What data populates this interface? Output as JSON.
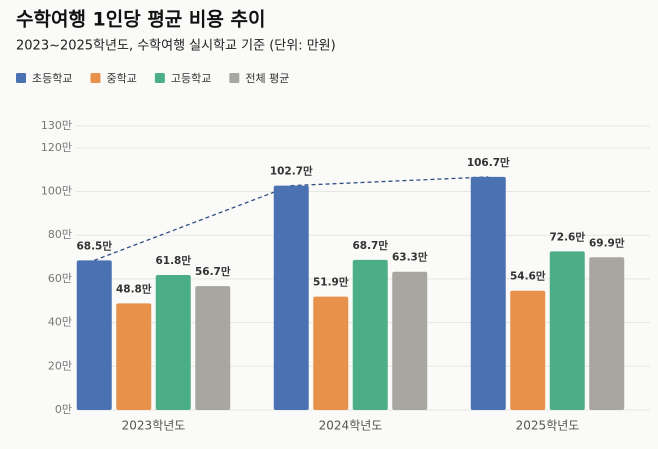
{
  "chart_data": {
    "type": "bar",
    "title": "수학여행 1인당 평균 비용 추이",
    "subtitle": "2023~2025학년도, 수학여행 실시학교 기준 (단위: 만원)",
    "categories": [
      "2023학년도",
      "2024학년도",
      "2025학년도"
    ],
    "series": [
      {
        "name": "초등학교",
        "color": "#4a72b2",
        "label_color": "#2f4f82",
        "values": [
          68.5,
          102.7,
          106.7
        ],
        "value_labels": [
          "68.5만",
          "102.7만",
          "106.7만"
        ]
      },
      {
        "name": "중학교",
        "color": "#e8914b",
        "label_color": "#a85f22",
        "values": [
          48.8,
          51.9,
          54.6
        ],
        "value_labels": [
          "48.8만",
          "51.9만",
          "54.6만"
        ]
      },
      {
        "name": "고등학교",
        "color": "#4cae86",
        "label_color": "#2c7d59",
        "values": [
          61.8,
          68.7,
          72.6
        ],
        "value_labels": [
          "61.8만",
          "68.7만",
          "72.6만"
        ]
      },
      {
        "name": "전체 평균",
        "color": "#a8a6a1",
        "label_color": "#555555",
        "values": [
          56.7,
          63.3,
          69.9
        ],
        "value_labels": [
          "56.7만",
          "63.3만",
          "69.9만"
        ]
      }
    ],
    "trend_line": {
      "series": 0,
      "color": "#2f4f82",
      "dashed": true
    },
    "ylim": [
      0,
      130
    ],
    "yticks": [
      {
        "value": 0,
        "label": "0만"
      },
      {
        "value": 20,
        "label": "20만"
      },
      {
        "value": 40,
        "label": "40만"
      },
      {
        "value": 60,
        "label": "60만"
      },
      {
        "value": 80,
        "label": "80만"
      },
      {
        "value": 100,
        "label": "100만"
      },
      {
        "value": 120,
        "label": "120만"
      },
      {
        "value": 130,
        "label": "130만"
      }
    ],
    "grid": true
  }
}
